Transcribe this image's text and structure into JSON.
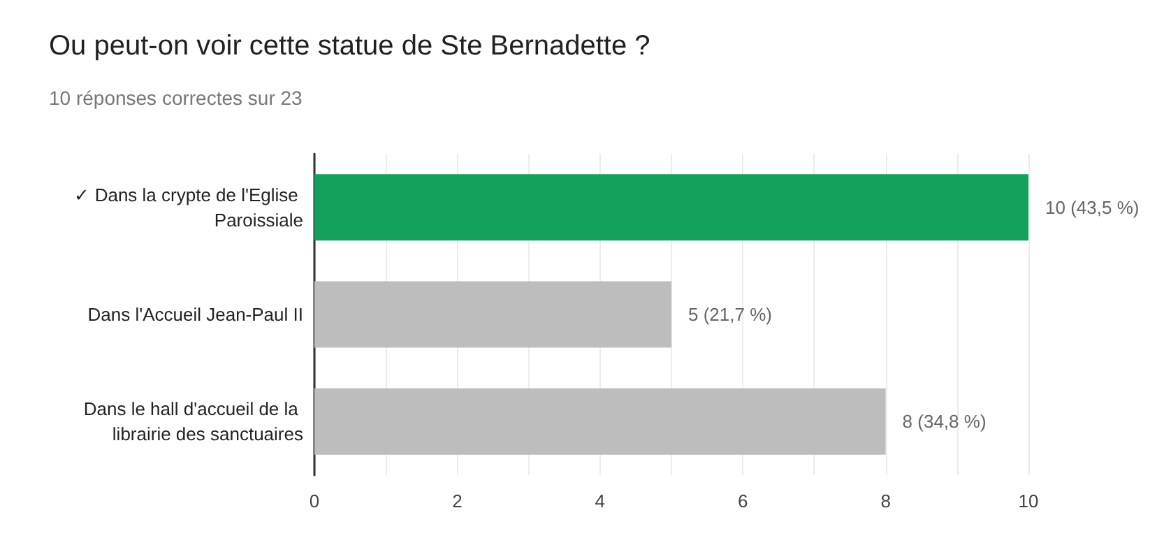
{
  "chart_data": {
    "type": "bar",
    "orientation": "horizontal",
    "title": "Ou peut-on voir cette statue de Ste Bernadette ?",
    "subtitle": "10 réponses correctes sur 23",
    "categories": [
      "✓ Dans la crypte de l'Eglise Paroissiale",
      "Dans l'Accueil Jean-Paul II",
      "Dans le hall d'accueil de la librairie des sanctuaires"
    ],
    "values": [
      10,
      5,
      8
    ],
    "colors": [
      "#13a05a",
      "#bdbdbd",
      "#bdbdbd"
    ],
    "value_labels": [
      "10 (43,5 %)",
      "5 (21,7 %)",
      "8 (34,8 %)"
    ],
    "xlim": [
      0,
      10
    ],
    "xticks": [
      0,
      {
        "value": 1,
        "label": null
      },
      2,
      {
        "value": 3,
        "label": null
      },
      4,
      {
        "value": 5,
        "label": null
      },
      6,
      {
        "value": 7,
        "label": null
      },
      8,
      {
        "value": 9,
        "label": null
      },
      10
    ],
    "grid": "x"
  }
}
